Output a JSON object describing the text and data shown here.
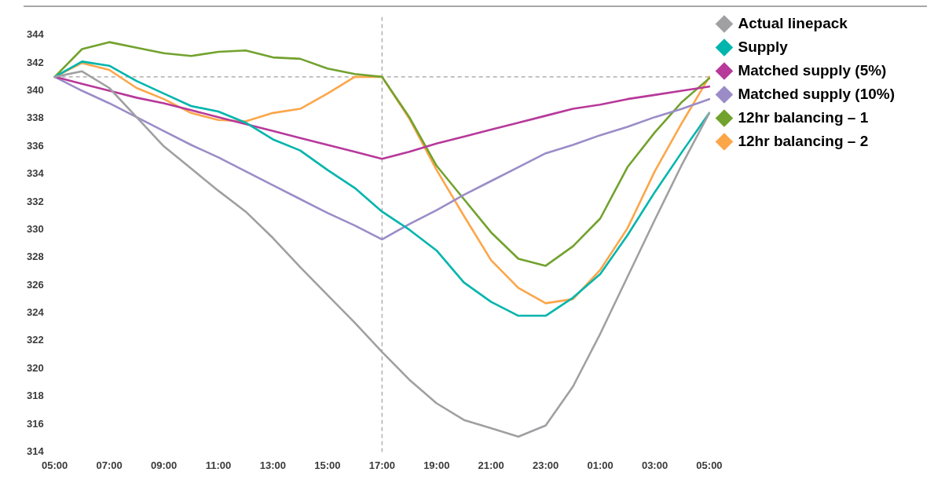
{
  "chart_data": {
    "type": "line",
    "categories": [
      "05:00",
      null,
      "07:00",
      null,
      "09:00",
      null,
      "11:00",
      null,
      "13:00",
      null,
      "15:00",
      null,
      "17:00",
      null,
      "19:00",
      null,
      "21:00",
      null,
      "23:00",
      null,
      "01:00",
      null,
      "03:00",
      null,
      "05:00"
    ],
    "series": [
      {
        "name": "Actual linepack",
        "color": "#a0a0a3",
        "values": [
          341,
          341.4,
          340.2,
          338.1,
          336.0,
          334.4,
          332.8,
          331.3,
          329.4,
          327.3,
          325.3,
          323.3,
          321.2,
          319.2,
          317.5,
          316.3,
          315.7,
          315.1,
          315.9,
          318.7,
          322.5,
          326.6,
          330.7,
          334.7,
          338.4
        ]
      },
      {
        "name": "Supply",
        "color": "#00b5ad",
        "values": [
          341,
          342.1,
          341.8,
          340.7,
          339.8,
          338.9,
          338.5,
          337.7,
          336.5,
          335.7,
          334.3,
          333.0,
          331.3,
          330.0,
          328.5,
          326.2,
          324.8,
          323.8,
          323.8,
          325.1,
          326.8,
          329.6,
          332.7,
          335.6,
          338.4
        ]
      },
      {
        "name": "Matched supply (5%)",
        "color": "#b7399a",
        "values": [
          341,
          340.5,
          340.0,
          339.5,
          339.1,
          338.6,
          338.1,
          337.6,
          337.1,
          336.6,
          336.1,
          335.6,
          335.1,
          335.6,
          336.2,
          336.7,
          337.2,
          337.7,
          338.2,
          338.7,
          339.0,
          339.4,
          339.7,
          340.0,
          340.3
        ]
      },
      {
        "name": "Matched supply (10%)",
        "color": "#9b8cc8",
        "values": [
          341,
          340.0,
          339.1,
          338.1,
          337.1,
          336.1,
          335.2,
          334.2,
          333.2,
          332.2,
          331.2,
          330.3,
          329.3,
          330.4,
          331.4,
          332.5,
          333.5,
          334.5,
          335.5,
          336.1,
          336.8,
          337.4,
          338.1,
          338.7,
          339.4
        ]
      },
      {
        "name": "12hr balancing – 1",
        "color": "#72a22e",
        "values": [
          341,
          343.0,
          343.5,
          343.1,
          342.7,
          342.5,
          342.8,
          342.9,
          342.4,
          342.3,
          341.6,
          341.2,
          341.0,
          338.1,
          334.6,
          332.2,
          329.8,
          327.9,
          327.4,
          328.8,
          330.8,
          334.5,
          337.0,
          339.2,
          340.9
        ]
      },
      {
        "name": "12hr balancing – 2",
        "color": "#fca64a",
        "values": [
          341,
          342.0,
          341.5,
          340.2,
          339.4,
          338.4,
          337.9,
          337.8,
          338.4,
          338.7,
          339.8,
          341.0,
          341.0,
          338.0,
          334.3,
          331.0,
          327.8,
          325.8,
          324.7,
          325.0,
          327.1,
          330.1,
          334.2,
          337.7,
          341.0
        ]
      }
    ],
    "ylim": [
      314,
      345.3
    ],
    "yticks": [
      314,
      316,
      318,
      320,
      322,
      324,
      326,
      328,
      330,
      332,
      334,
      336,
      338,
      340,
      342,
      344
    ],
    "grid": false,
    "legend": "right",
    "marker": "none",
    "line_style": "solid",
    "ref_lines": [
      {
        "axis": "y",
        "value": 341,
        "line_style": "dashed",
        "color": "#a0a0a0"
      },
      {
        "axis": "x",
        "value": "17:00",
        "line_style": "dashed",
        "color": "#a0a0a0"
      }
    ]
  }
}
